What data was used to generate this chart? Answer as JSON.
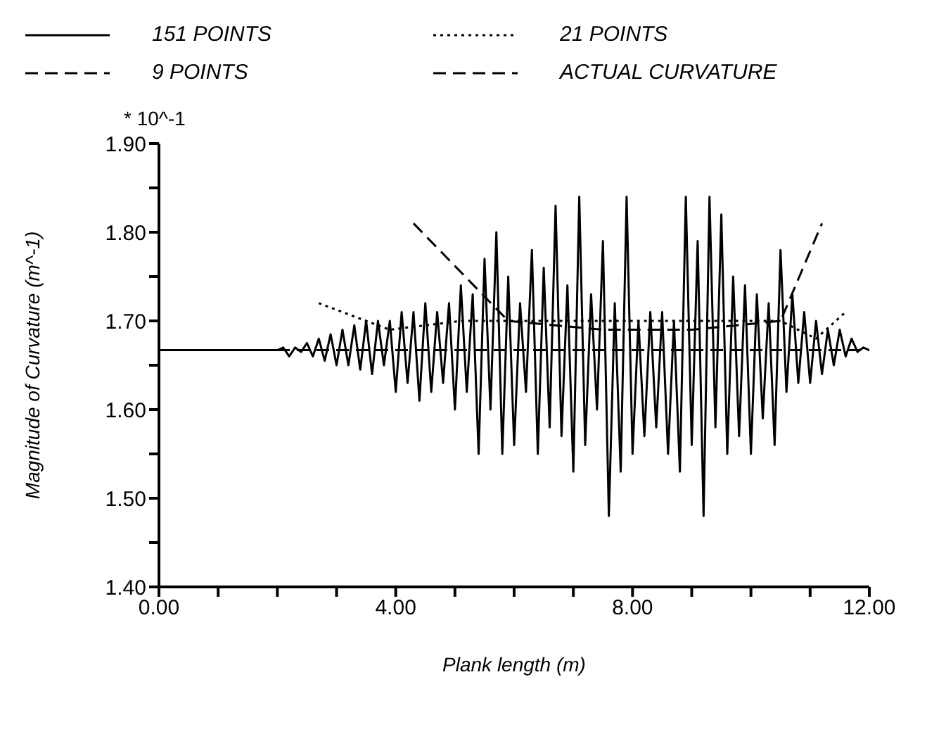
{
  "chart_data": {
    "type": "line",
    "xlabel": "Plank length (m)",
    "ylabel": "Magnitude of Curvature (m^-1)",
    "annotations": [
      "* 10^-1"
    ],
    "xlim": [
      0,
      12
    ],
    "xticks": [
      {
        "value": 0,
        "label": "0.00"
      },
      {
        "value": 1,
        "label": null
      },
      {
        "value": 2,
        "label": null
      },
      {
        "value": 3,
        "label": null
      },
      {
        "value": 4,
        "label": "4.00"
      },
      {
        "value": 5,
        "label": null
      },
      {
        "value": 6,
        "label": null
      },
      {
        "value": 7,
        "label": null
      },
      {
        "value": 8,
        "label": "8.00"
      },
      {
        "value": 9,
        "label": null
      },
      {
        "value": 10,
        "label": null
      },
      {
        "value": 11,
        "label": null
      },
      {
        "value": 12,
        "label": "12.00"
      }
    ],
    "ylim": [
      1.4,
      1.9
    ],
    "yticks": [
      {
        "value": 1.4,
        "label": "1.40"
      },
      {
        "value": 1.45,
        "label": null
      },
      {
        "value": 1.5,
        "label": "1.50"
      },
      {
        "value": 1.55,
        "label": null
      },
      {
        "value": 1.6,
        "label": "1.60"
      },
      {
        "value": 1.65,
        "label": null
      },
      {
        "value": 1.7,
        "label": "1.70"
      },
      {
        "value": 1.75,
        "label": null
      },
      {
        "value": 1.8,
        "label": "1.80"
      },
      {
        "value": 1.85,
        "label": null
      },
      {
        "value": 1.9,
        "label": "1.90"
      }
    ],
    "grid": false,
    "legend": "top",
    "marker": "none",
    "series": [
      {
        "name": "151 POINTS",
        "color": "#000000",
        "line_style": "solid",
        "x": [
          0,
          2.0,
          2.1,
          2.2,
          2.3,
          2.4,
          2.5,
          2.6,
          2.7,
          2.8,
          2.9,
          3.0,
          3.1,
          3.2,
          3.3,
          3.4,
          3.5,
          3.6,
          3.7,
          3.8,
          3.9,
          4.0,
          4.1,
          4.2,
          4.3,
          4.4,
          4.5,
          4.6,
          4.7,
          4.8,
          4.9,
          5.0,
          5.1,
          5.2,
          5.3,
          5.4,
          5.5,
          5.6,
          5.7,
          5.8,
          5.9,
          6.0,
          6.1,
          6.2,
          6.3,
          6.4,
          6.5,
          6.6,
          6.7,
          6.8,
          6.9,
          7.0,
          7.1,
          7.2,
          7.3,
          7.4,
          7.5,
          7.6,
          7.7,
          7.8,
          7.9,
          8.0,
          8.1,
          8.2,
          8.3,
          8.4,
          8.5,
          8.6,
          8.7,
          8.8,
          8.9,
          9.0,
          9.1,
          9.2,
          9.3,
          9.4,
          9.5,
          9.6,
          9.7,
          9.8,
          9.9,
          10.0,
          10.1,
          10.2,
          10.3,
          10.4,
          10.5,
          10.6,
          10.7,
          10.8,
          10.9,
          11.0,
          11.1,
          11.2,
          11.3,
          11.4,
          11.5,
          11.6,
          11.7,
          11.8,
          11.9,
          12.0
        ],
        "values": [
          1.667,
          1.667,
          1.67,
          1.66,
          1.67,
          1.665,
          1.675,
          1.66,
          1.68,
          1.655,
          1.685,
          1.65,
          1.69,
          1.65,
          1.695,
          1.645,
          1.7,
          1.64,
          1.7,
          1.65,
          1.7,
          1.62,
          1.71,
          1.63,
          1.71,
          1.61,
          1.72,
          1.62,
          1.71,
          1.63,
          1.72,
          1.6,
          1.74,
          1.62,
          1.73,
          1.55,
          1.77,
          1.6,
          1.8,
          1.55,
          1.75,
          1.56,
          1.72,
          1.62,
          1.78,
          1.55,
          1.76,
          1.58,
          1.83,
          1.57,
          1.74,
          1.53,
          1.84,
          1.56,
          1.73,
          1.6,
          1.79,
          1.48,
          1.72,
          1.53,
          1.84,
          1.55,
          1.7,
          1.57,
          1.71,
          1.58,
          1.71,
          1.55,
          1.7,
          1.53,
          1.84,
          1.56,
          1.79,
          1.48,
          1.84,
          1.58,
          1.82,
          1.55,
          1.75,
          1.57,
          1.74,
          1.55,
          1.73,
          1.59,
          1.72,
          1.56,
          1.78,
          1.62,
          1.73,
          1.63,
          1.71,
          1.63,
          1.7,
          1.64,
          1.69,
          1.65,
          1.69,
          1.66,
          1.68,
          1.665,
          1.67,
          1.667
        ]
      },
      {
        "name": "21 POINTS",
        "color": "#000000",
        "line_style": "dotted",
        "x": [
          2.7,
          3.9,
          4.5,
          5.1,
          5.7,
          6.3,
          6.9,
          7.5,
          8.1,
          8.7,
          9.3,
          9.9,
          10.5,
          11.1,
          11.6
        ],
        "values": [
          1.72,
          1.69,
          1.695,
          1.7,
          1.7,
          1.7,
          1.7,
          1.7,
          1.7,
          1.7,
          1.7,
          1.7,
          1.7,
          1.68,
          1.71
        ]
      },
      {
        "name": "9 POINTS",
        "color": "#000000",
        "line_style": "dashed",
        "x": [
          4.3,
          5.9,
          7.5,
          9.0,
          10.5,
          11.2
        ],
        "values": [
          1.81,
          1.7,
          1.69,
          1.69,
          1.7,
          1.81
        ]
      },
      {
        "name": "ACTUAL CURVATURE",
        "color": "#000000",
        "line_style": "dashed",
        "x": [
          0,
          12
        ],
        "values": [
          1.667,
          1.667
        ]
      }
    ]
  }
}
